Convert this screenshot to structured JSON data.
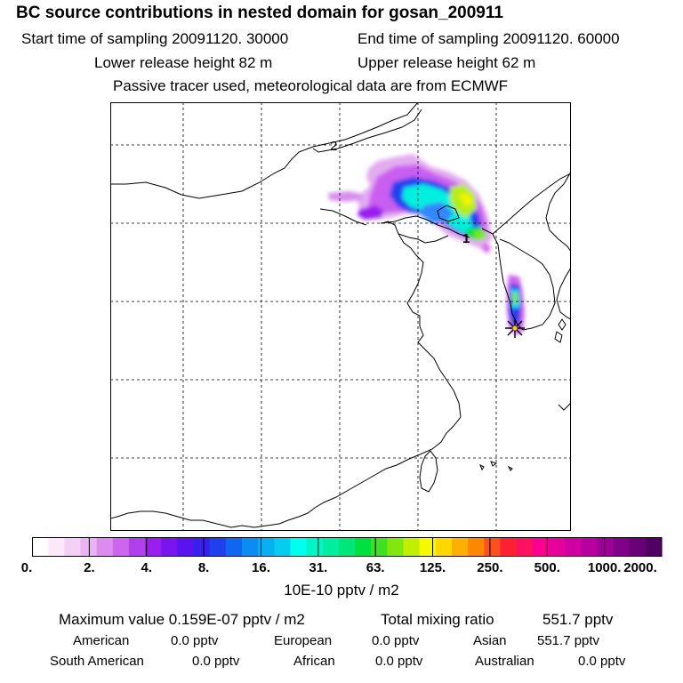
{
  "header": {
    "title": "BC  source contributions in nested domain for gosan_200911",
    "start_label": "Start time of sampling 20091120. 30000",
    "end_label": "End time of sampling 20091120. 60000",
    "lower_label": "Lower release height   82 m",
    "upper_label": "Upper release height   62 m",
    "note": "Passive tracer used, meteorological data are from ECMWF"
  },
  "map": {
    "markers": [
      "2",
      "1"
    ],
    "release_site": "gosan"
  },
  "colorbar": {
    "labels": [
      "0.",
      "2.",
      "4.",
      "8.",
      "16.",
      "31.",
      "63.",
      "125.",
      "250.",
      "500.",
      "1000.",
      "2000."
    ],
    "unit": "10E-10 pptv / m2",
    "colors": [
      "#ffffff",
      "#fbe8fb",
      "#f4d0f6",
      "#eab4f2",
      "#dc8cef",
      "#cc66ee",
      "#b040ee",
      "#9a1fee",
      "#7a14ee",
      "#5a12ee",
      "#3a20ee",
      "#2040ee",
      "#1066f0",
      "#0a8cf2",
      "#08aff2",
      "#06cdf0",
      "#00ffee",
      "#00f5c8",
      "#00eea0",
      "#00e678",
      "#00e040",
      "#40e020",
      "#80e810",
      "#c0f000",
      "#f8f800",
      "#fcd800",
      "#fcb000",
      "#fc8800",
      "#fc5020",
      "#fc2030",
      "#fc1060",
      "#fc0090",
      "#e8009c",
      "#d000a0",
      "#b800a0",
      "#9c0094",
      "#800088",
      "#680078",
      "#500064"
    ]
  },
  "stats": {
    "max_label": "Maximum value  0.159E-07 pptv / m2",
    "total_label": "Total mixing ratio",
    "total_value": "551.7 pptv",
    "american_label": "American",
    "american_value": "0.0 pptv",
    "european_label": "European",
    "european_value": "0.0 pptv",
    "asian_label": "Asian",
    "asian_value": "551.7 pptv",
    "south_american_label": "South American",
    "south_american_value": "0.0 pptv",
    "african_label": "African",
    "african_value": "0.0 pptv",
    "australian_label": "Australian",
    "australian_value": "0.0 pptv"
  }
}
